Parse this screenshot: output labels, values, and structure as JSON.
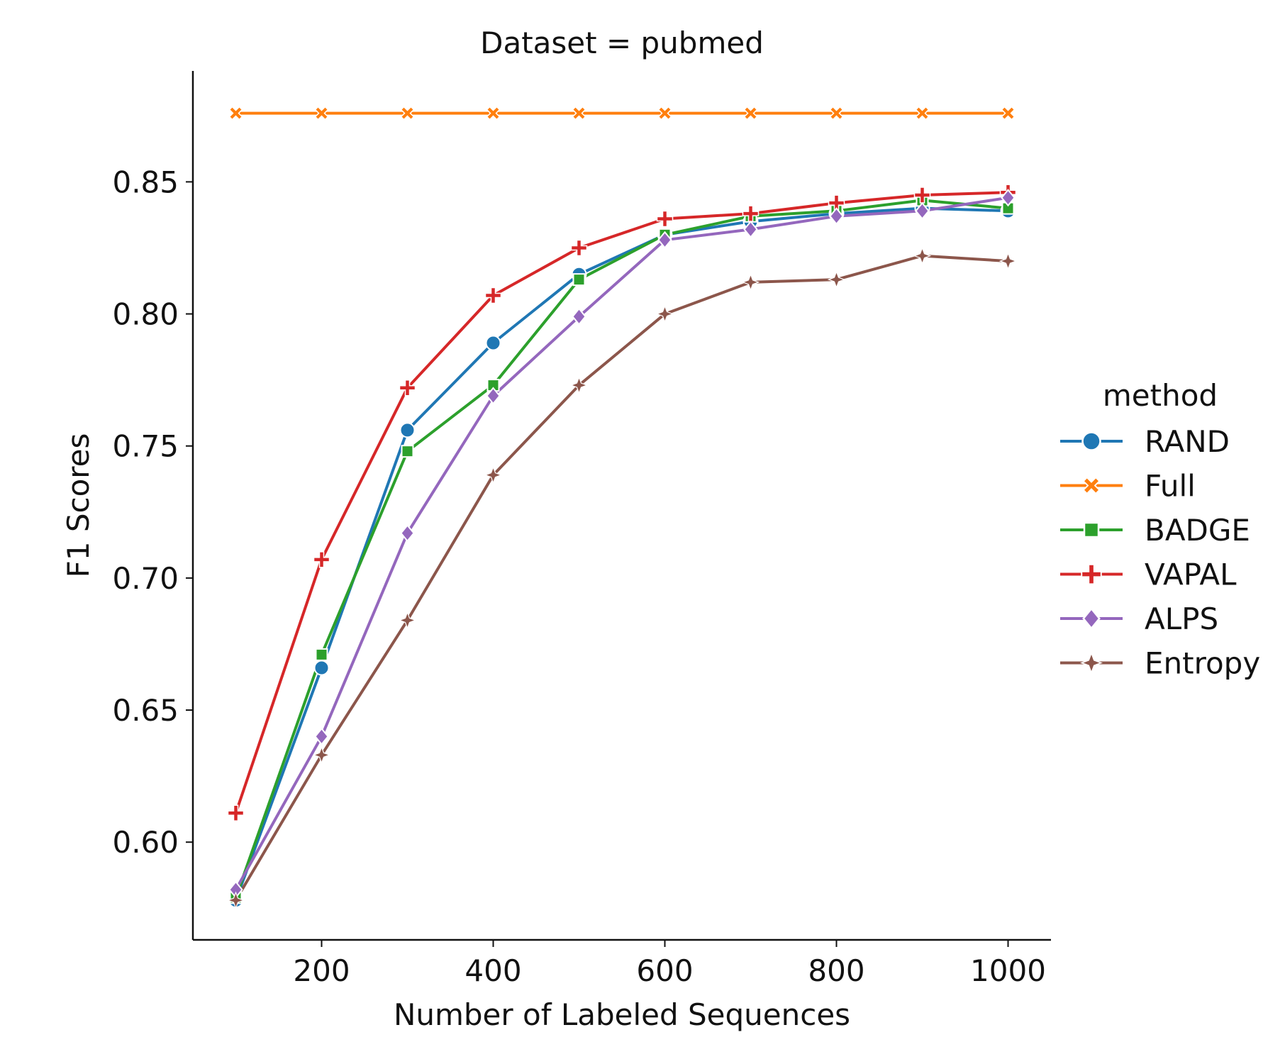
{
  "chart_data": {
    "type": "line",
    "title": "Dataset = pubmed",
    "xlabel": "Number of Labeled Sequences",
    "ylabel": "F1 Scores",
    "xlim": [
      50,
      1050
    ],
    "ylim": [
      0.563,
      0.892
    ],
    "x_ticks": [
      200,
      400,
      600,
      800,
      1000
    ],
    "y_ticks": [
      0.6,
      0.65,
      0.7,
      0.75,
      0.8,
      0.85
    ],
    "grid": false,
    "legend": {
      "title": "method",
      "position": "right"
    },
    "x": [
      100,
      200,
      300,
      400,
      500,
      600,
      700,
      800,
      900,
      1000
    ],
    "series": [
      {
        "name": "RAND",
        "color": "#1f77b4",
        "marker": "circle",
        "values": [
          0.578,
          0.666,
          0.756,
          0.789,
          0.815,
          0.83,
          0.835,
          0.838,
          0.84,
          0.839
        ]
      },
      {
        "name": "Full",
        "color": "#ff7f0e",
        "marker": "x",
        "values": [
          0.876,
          0.876,
          0.876,
          0.876,
          0.876,
          0.876,
          0.876,
          0.876,
          0.876,
          0.876
        ]
      },
      {
        "name": "BADGE",
        "color": "#2ca02c",
        "marker": "square",
        "values": [
          0.579,
          0.671,
          0.748,
          0.773,
          0.813,
          0.83,
          0.837,
          0.839,
          0.843,
          0.84
        ]
      },
      {
        "name": "VAPAL",
        "color": "#d62728",
        "marker": "plus",
        "values": [
          0.611,
          0.707,
          0.772,
          0.807,
          0.825,
          0.836,
          0.838,
          0.842,
          0.845,
          0.846
        ]
      },
      {
        "name": "ALPS",
        "color": "#9467bd",
        "marker": "diamond",
        "values": [
          0.582,
          0.64,
          0.717,
          0.769,
          0.799,
          0.828,
          0.832,
          0.837,
          0.839,
          0.844
        ]
      },
      {
        "name": "Entropy",
        "color": "#8c564b",
        "marker": "star",
        "values": [
          0.578,
          0.633,
          0.684,
          0.739,
          0.773,
          0.8,
          0.812,
          0.813,
          0.822,
          0.82
        ]
      }
    ]
  }
}
